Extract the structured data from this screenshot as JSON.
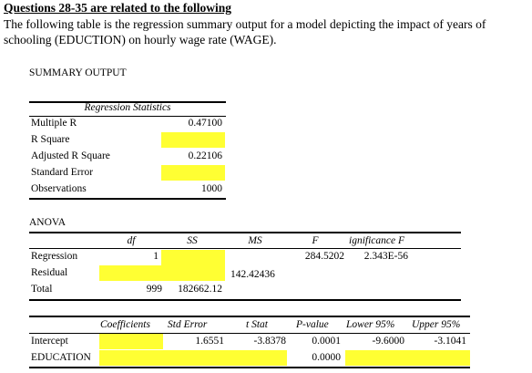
{
  "heading": "Questions 28-35 are related to the following",
  "intro": "The following table is the regression summary output for a model depicting the impact of years of schooling (EDUCTION) on hourly wage rate (WAGE).",
  "summary_title": "SUMMARY OUTPUT",
  "regression_statistics": {
    "title": "Regression Statistics",
    "rows": [
      {
        "label": "Multiple R",
        "value": "0.47100",
        "highlighted": false
      },
      {
        "label": "R Square",
        "value": "",
        "highlighted": true
      },
      {
        "label": "Adjusted R Square",
        "value": "0.22106",
        "highlighted": false
      },
      {
        "label": "Standard Error",
        "value": "",
        "highlighted": true
      },
      {
        "label": "Observations",
        "value": "1000",
        "highlighted": false
      }
    ]
  },
  "anova": {
    "title": "ANOVA",
    "headers": [
      "df",
      "SS",
      "MS",
      "F",
      "ignificance F"
    ],
    "rows": [
      {
        "label": "Regression",
        "df": "1",
        "ss": "",
        "ms": "",
        "f": "284.5202",
        "sig": "2.343E-56"
      },
      {
        "label": "Residual",
        "df": "",
        "ss": "",
        "ms": "142.42436",
        "f": "",
        "sig": ""
      },
      {
        "label": "Total",
        "df": "999",
        "ss": "182662.12",
        "ms": "",
        "f": "",
        "sig": ""
      }
    ]
  },
  "coefficients": {
    "headers": [
      "Coefficients",
      "Std Error",
      "t Stat",
      "P-value",
      "Lower 95%",
      "Upper 95%"
    ],
    "rows": [
      {
        "label": "Intercept",
        "coef": "",
        "se": "1.6551",
        "t": "-3.8378",
        "p": "0.0001",
        "lower": "-9.6000",
        "upper": "-3.1041"
      },
      {
        "label": "EDUCATION",
        "coef": "",
        "se": "",
        "t": "",
        "p": "0.0000",
        "lower": "",
        "upper": ""
      }
    ]
  },
  "colors": {
    "highlight": "#ffff33"
  }
}
